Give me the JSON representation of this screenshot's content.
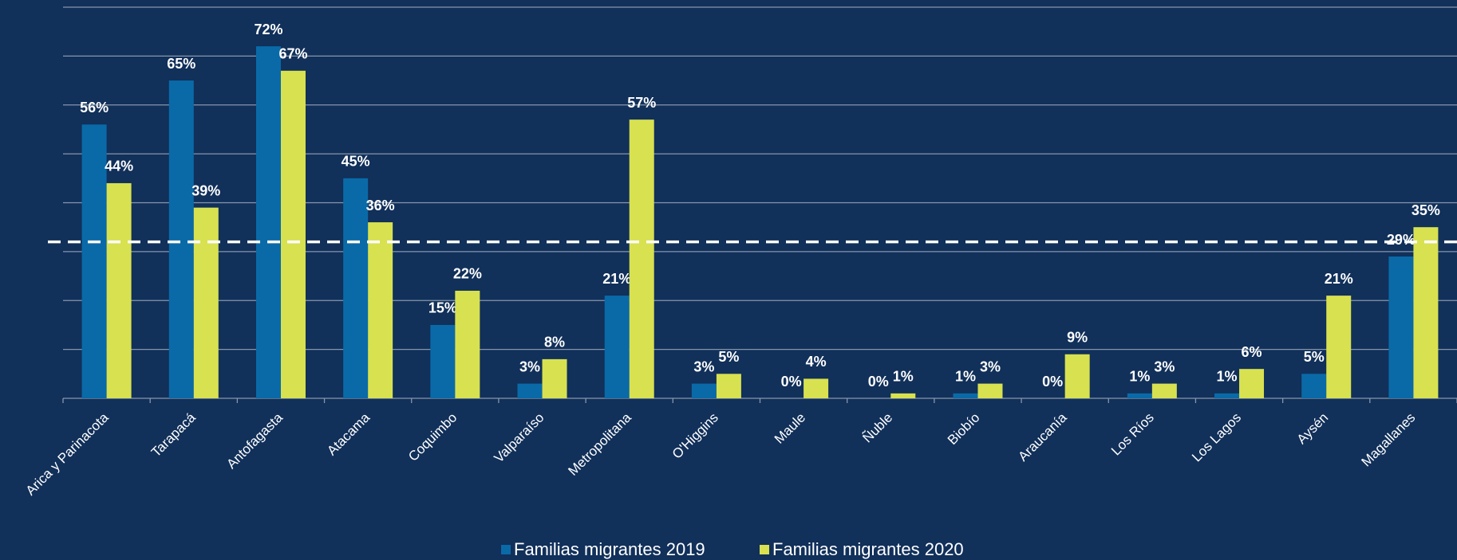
{
  "chart_data": {
    "type": "bar",
    "categories": [
      "Arica y Parinacota",
      "Tarapacá",
      "Antofagasta",
      "Atacama",
      "Coquimbo",
      "Valparaíso",
      "Metropolitana",
      "O'Higgins",
      "Maule",
      "Ñuble",
      "Biobío",
      "Araucanía",
      "Los Ríos",
      "Los Lagos",
      "Aysén",
      "Magallanes"
    ],
    "series": [
      {
        "name": "Familias migrantes 2019",
        "color": "#0a6aa8",
        "values": [
          56,
          65,
          72,
          45,
          15,
          3,
          21,
          3,
          0,
          0,
          1,
          0,
          1,
          1,
          5,
          29
        ],
        "value_labels": [
          "56%",
          "65%",
          "72%",
          "45%",
          "15%",
          "3%",
          "21%",
          "3%",
          "0%",
          "0%",
          "1%",
          "0%",
          "1%",
          "1%",
          "5%",
          "29%"
        ]
      },
      {
        "name": "Familias migrantes 2020",
        "color": "#d8e150",
        "values": [
          44,
          39,
          67,
          36,
          22,
          8,
          57,
          5,
          4,
          1,
          3,
          9,
          3,
          6,
          21,
          35
        ],
        "value_labels": [
          "44%",
          "39%",
          "67%",
          "36%",
          "22%",
          "8%",
          "57%",
          "5%",
          "4%",
          "1%",
          "3%",
          "9%",
          "3%",
          "6%",
          "21%",
          "35%"
        ]
      }
    ],
    "ylim": [
      0,
      80
    ],
    "yticks": [
      0,
      10,
      20,
      30,
      40,
      50,
      60,
      70,
      80
    ],
    "grid": true,
    "reference_line": 32
  }
}
